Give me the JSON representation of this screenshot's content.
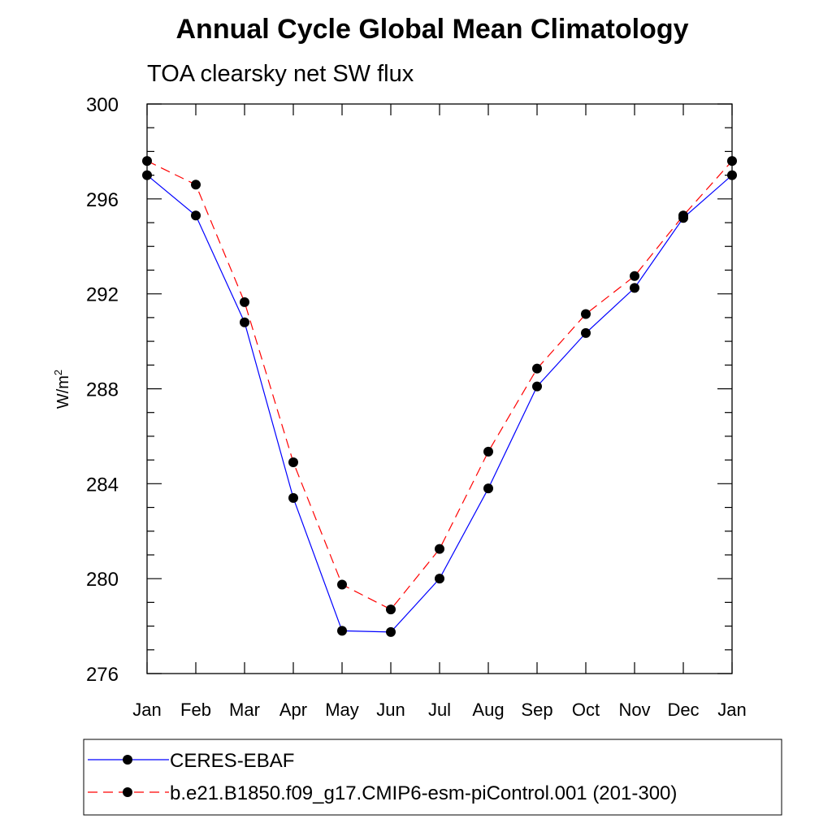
{
  "chart_data": {
    "type": "line",
    "title": "Annual Cycle Global Mean Climatology",
    "subtitle": "TOA clearsky net SW flux",
    "ylabel": "W/m",
    "ylabel_superscript": "2",
    "xlabel": "",
    "categories": [
      "Jan",
      "Feb",
      "Mar",
      "Apr",
      "May",
      "Jun",
      "Jul",
      "Aug",
      "Sep",
      "Oct",
      "Nov",
      "Dec",
      "Jan"
    ],
    "ylim": [
      276,
      300
    ],
    "yticks": [
      276,
      280,
      284,
      288,
      292,
      296,
      300
    ],
    "grid": false,
    "legend_position": "bottom",
    "series": [
      {
        "name": "CERES-EBAF",
        "color": "#0000ff",
        "dash": "solid",
        "values": [
          297.0,
          295.3,
          290.8,
          283.4,
          277.8,
          277.75,
          280.0,
          283.8,
          288.1,
          290.35,
          292.25,
          295.2,
          297.0
        ]
      },
      {
        "name": "b.e21.B1850.f09_g17.CMIP6-esm-piControl.001 (201-300)",
        "color": "#ff0000",
        "dash": "dashed",
        "values": [
          297.6,
          296.6,
          291.65,
          284.9,
          279.75,
          278.7,
          281.25,
          285.35,
          288.85,
          291.15,
          292.75,
          295.3,
          297.6
        ]
      }
    ]
  }
}
